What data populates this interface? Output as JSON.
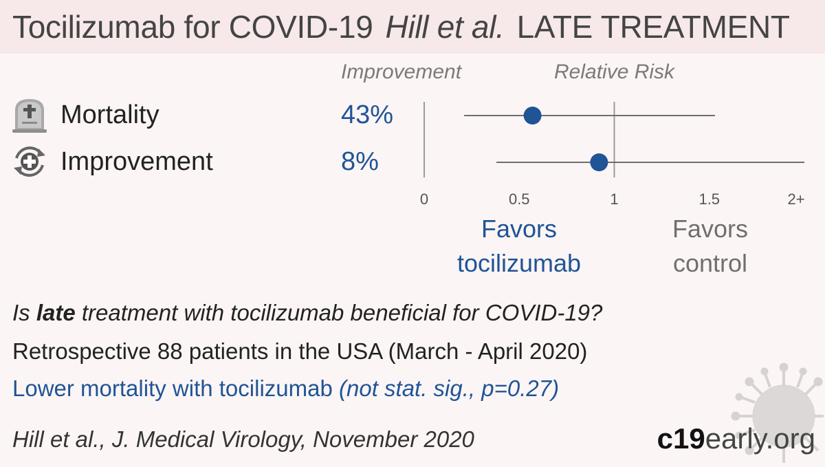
{
  "header": {
    "title": "Tocilizumab for COVID-19",
    "authors": "Hill et al.",
    "treatment": "LATE TREATMENT"
  },
  "columns": {
    "improvement": "Improvement",
    "relative_risk": "Relative Risk"
  },
  "outcomes": [
    {
      "label": "Mortality",
      "improvement": "43%",
      "icon": "tombstone-icon"
    },
    {
      "label": "Improvement",
      "improvement": "8%",
      "icon": "recovery-cross-icon"
    }
  ],
  "favors": {
    "treatment_line1": "Favors",
    "treatment_line2": "tocilizumab",
    "control_line1": "Favors",
    "control_line2": "control"
  },
  "summary": {
    "question_pre": "Is ",
    "question_bold": "late",
    "question_post": " treatment with tocilizumab beneficial for COVID-19?",
    "description": "Retrospective 88 patients in the USA (March - April 2020)",
    "result_main": "Lower mortality with tocilizumab ",
    "result_stat": "(not stat. sig., p=0.27)",
    "citation": "Hill et al., J. Medical Virology, November 2020"
  },
  "brand": {
    "bold": "c19",
    "light": "early.org"
  },
  "chart_data": {
    "type": "forest",
    "axis_label": "Relative Risk",
    "ticks": [
      "0",
      "0.5",
      "1",
      "1.5",
      "2+"
    ],
    "tick_values": [
      0,
      0.5,
      1,
      1.5,
      2
    ],
    "xlim": [
      0,
      2
    ],
    "reference_line": 1,
    "rows": [
      {
        "name": "Mortality",
        "rr": 0.57,
        "ci_low": 0.21,
        "ci_high": 1.53
      },
      {
        "name": "Improvement",
        "rr": 0.92,
        "ci_low": 0.38,
        "ci_high": 2.0
      }
    ],
    "colors": {
      "point": "#1f5496",
      "line": "#6e6e6e",
      "axis": "#9a9a9a",
      "tick": "#555555"
    }
  }
}
